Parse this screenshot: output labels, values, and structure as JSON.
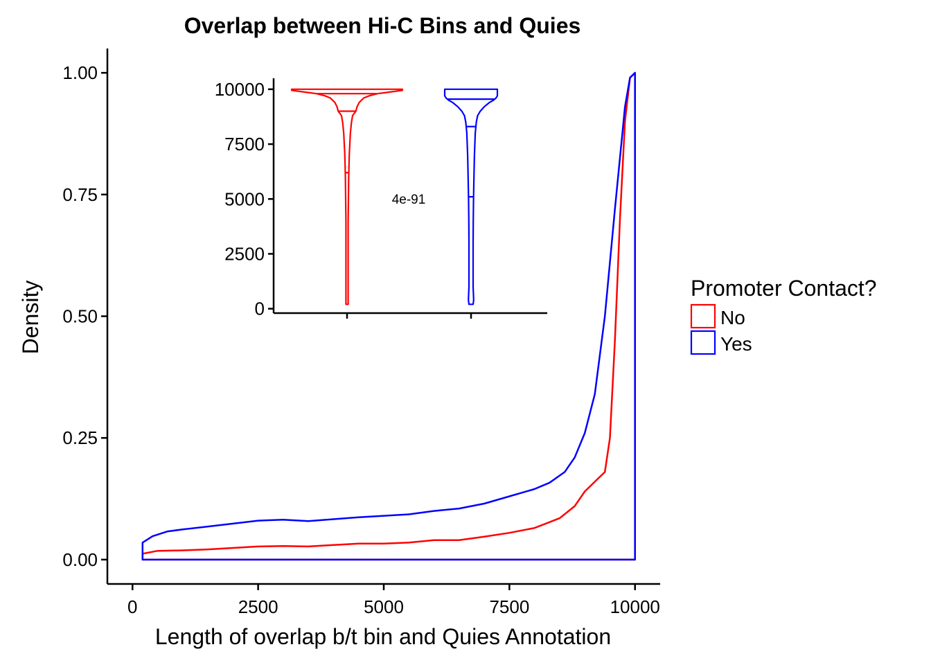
{
  "chart_data": {
    "title": "Overlap between Hi-C Bins and Quies",
    "main": {
      "type": "area",
      "xlabel": "Length of overlap b/t bin and Quies Annotation",
      "ylabel": "Density",
      "xlim": [
        -500,
        10500
      ],
      "ylim": [
        -0.05,
        1.05
      ],
      "xticks": [
        0,
        2500,
        5000,
        7500,
        10000
      ],
      "yticks": [
        0,
        0.25,
        0.5,
        0.75,
        1.0
      ],
      "xtick_labels": [
        "0",
        "2500",
        "5000",
        "7500",
        "10000"
      ],
      "ytick_labels": [
        "0.00",
        "0.25",
        "0.50",
        "0.75",
        "1.00"
      ],
      "grid": false,
      "series": [
        {
          "name": "No",
          "color": "#ff0000",
          "x": [
            200,
            500,
            1000,
            1500,
            2000,
            2500,
            3000,
            3500,
            4000,
            4500,
            5000,
            5500,
            6000,
            6500,
            7000,
            7500,
            8000,
            8500,
            8800,
            9000,
            9200,
            9400,
            9500,
            9600,
            9700,
            9800,
            9900,
            10000
          ],
          "y": [
            0.012,
            0.018,
            0.019,
            0.021,
            0.024,
            0.027,
            0.028,
            0.027,
            0.03,
            0.033,
            0.033,
            0.035,
            0.04,
            0.04,
            0.047,
            0.055,
            0.065,
            0.085,
            0.11,
            0.14,
            0.16,
            0.18,
            0.25,
            0.45,
            0.7,
            0.9,
            0.99,
            1.0
          ]
        },
        {
          "name": "Yes",
          "color": "#0000ff",
          "x": [
            200,
            400,
            700,
            1000,
            1500,
            2000,
            2500,
            3000,
            3500,
            4000,
            4500,
            5000,
            5500,
            6000,
            6500,
            7000,
            7500,
            8000,
            8300,
            8600,
            8800,
            9000,
            9200,
            9400,
            9600,
            9800,
            9900,
            10000
          ],
          "y": [
            0.035,
            0.048,
            0.058,
            0.062,
            0.068,
            0.074,
            0.08,
            0.082,
            0.079,
            0.083,
            0.087,
            0.09,
            0.093,
            0.1,
            0.105,
            0.115,
            0.13,
            0.145,
            0.158,
            0.18,
            0.21,
            0.26,
            0.34,
            0.5,
            0.72,
            0.93,
            0.99,
            1.0
          ]
        }
      ]
    },
    "inset": {
      "type": "violin",
      "ylim": [
        -200,
        10500
      ],
      "yticks": [
        0,
        2500,
        5000,
        7500,
        10000
      ],
      "ytick_labels": [
        "0",
        "2500",
        "5000",
        "7500",
        "10000"
      ],
      "annotation": "4e-91",
      "groups": [
        {
          "name": "No",
          "color": "#ff0000",
          "profile_y": [
            200,
            500,
            1000,
            2000,
            3000,
            4000,
            5000,
            6000,
            7000,
            8000,
            8500,
            8800,
            9000,
            9200,
            9400,
            9600,
            9700,
            9800,
            9850,
            9900,
            9950,
            10000
          ],
          "profile_density": [
            0.015,
            0.02,
            0.018,
            0.018,
            0.018,
            0.02,
            0.025,
            0.03,
            0.04,
            0.06,
            0.08,
            0.1,
            0.16,
            0.18,
            0.22,
            0.3,
            0.4,
            0.55,
            0.7,
            0.85,
            1.0,
            1.0
          ],
          "quantiles": [
            6200,
            9000,
            9800
          ]
        },
        {
          "name": "Yes",
          "color": "#0000ff",
          "profile_y": [
            200,
            400,
            1000,
            2000,
            3000,
            4000,
            5000,
            6000,
            7000,
            8000,
            8500,
            8800,
            9000,
            9200,
            9400,
            9500,
            9600,
            9700,
            9800,
            9900,
            10000
          ],
          "profile_density": [
            0.08,
            0.1,
            0.08,
            0.08,
            0.08,
            0.085,
            0.095,
            0.11,
            0.13,
            0.16,
            0.2,
            0.25,
            0.35,
            0.5,
            0.7,
            0.85,
            0.95,
            1.0,
            1.0,
            1.0,
            1.0
          ],
          "quantiles": [
            5100,
            8300,
            9550
          ]
        }
      ]
    },
    "legend": {
      "title": "Promoter Contact?",
      "placement": "right",
      "entries": [
        {
          "label": "No",
          "color": "#ff0000"
        },
        {
          "label": "Yes",
          "color": "#0000ff"
        }
      ]
    }
  }
}
